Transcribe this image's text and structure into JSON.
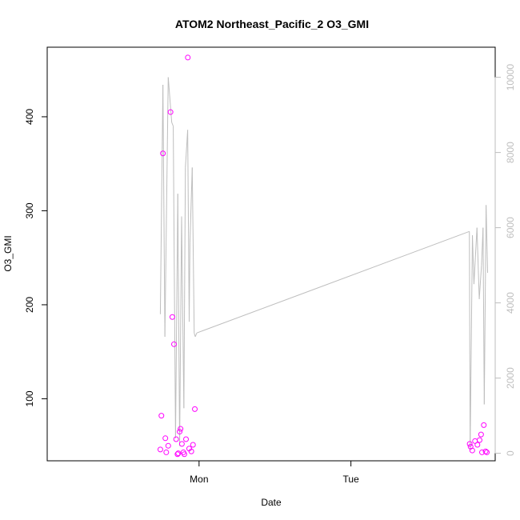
{
  "chart_data": {
    "type": "scatter",
    "title": "ATOM2 Northeast_Pacific_2 O3_GMI",
    "xlabel": "Date",
    "ylabel": "O3_GMI",
    "xlim": [
      0,
      2.95
    ],
    "x_ticks": [
      {
        "label": "Mon",
        "value": 1.0
      },
      {
        "label": "Tue",
        "value": 2.0
      }
    ],
    "ylim": [
      34,
      474
    ],
    "y_ticks": [
      100,
      200,
      300,
      400
    ],
    "y2lim": [
      -200,
      10800
    ],
    "y2_ticks": [
      0,
      2000,
      4000,
      6000,
      8000,
      10000
    ],
    "grid": false,
    "colors": {
      "points": "#ff00ff",
      "line": "#bebebe",
      "axis": "#000000",
      "secondary_axis": "#bebebe"
    },
    "series": [
      {
        "kind": "points",
        "axis": "left",
        "x": [
          0.745,
          0.752,
          0.762,
          0.778,
          0.784,
          0.797,
          0.812,
          0.824,
          0.835,
          0.849,
          0.858,
          0.863,
          0.872,
          0.878,
          0.887,
          0.897,
          0.903,
          0.914,
          0.926,
          0.935,
          0.949,
          0.96,
          0.972,
          2.782,
          2.788,
          2.799,
          2.817,
          2.833,
          2.847,
          2.857,
          2.863,
          2.875,
          2.887,
          2.895
        ],
        "y": [
          46,
          82,
          361,
          58,
          43,
          50,
          405,
          187,
          158,
          57,
          41,
          42,
          65,
          68,
          52,
          43,
          41,
          57,
          463,
          47,
          44,
          51,
          89,
          52,
          49,
          45,
          55,
          51,
          56,
          62,
          43,
          72,
          44,
          43
        ]
      },
      {
        "kind": "line",
        "axis": "right",
        "x": [
          0.745,
          0.762,
          0.775,
          0.797,
          0.82,
          0.83,
          0.845,
          0.86,
          0.872,
          0.885,
          0.89,
          0.9,
          0.91,
          0.925,
          0.935,
          0.94,
          0.955,
          0.968,
          0.975,
          0.985,
          2.78,
          2.785,
          2.8,
          2.81,
          2.83,
          2.845,
          2.86,
          2.87,
          2.878,
          2.89,
          2.9
        ],
        "y": [
          3700,
          9800,
          3100,
          10000,
          8800,
          8700,
          400,
          6900,
          200,
          6300,
          4500,
          1200,
          7600,
          8600,
          3500,
          5600,
          7600,
          3200,
          3100,
          3200,
          5900,
          100,
          5800,
          4500,
          6000,
          4100,
          5000,
          6000,
          1300,
          6600,
          4800
        ]
      }
    ]
  }
}
